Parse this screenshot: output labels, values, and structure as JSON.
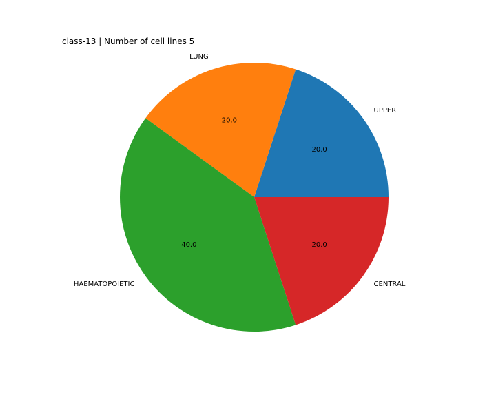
{
  "chart_data": {
    "type": "pie",
    "title": "class-13 | Number of cell lines 5",
    "start_angle_deg": 0,
    "direction": "counterclockwise",
    "slices": [
      {
        "label": "UPPER",
        "value": 20.0,
        "pct_label": "20.0",
        "color": "#1f77b4"
      },
      {
        "label": "LUNG",
        "value": 20.0,
        "pct_label": "20.0",
        "color": "#ff7f0e"
      },
      {
        "label": "HAEMATOPOIETIC",
        "value": 40.0,
        "pct_label": "40.0",
        "color": "#2ca02c"
      },
      {
        "label": "CENTRAL",
        "value": 20.0,
        "pct_label": "20.0",
        "color": "#d62728"
      }
    ]
  }
}
